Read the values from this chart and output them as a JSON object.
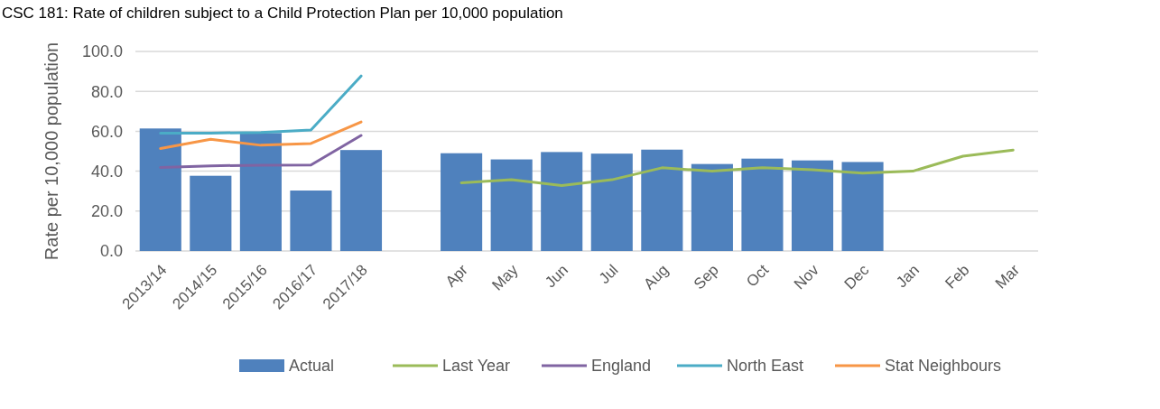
{
  "chart_data": {
    "type": "bar",
    "title": "CSC 181: Rate of children subject to a Child Protection Plan per 10,000 population",
    "ylabel": "Rate per 10,000 population",
    "categories": [
      "2013/14",
      "2014/15",
      "2015/16",
      "2016/17",
      "2017/18",
      null,
      "Apr",
      "May",
      "Jun",
      "Jul",
      "Aug",
      "Sep",
      "Oct",
      "Nov",
      "Dec",
      "Jan",
      "Feb",
      "Mar"
    ],
    "series": [
      {
        "name": "Actual",
        "color": "#4f81bd",
        "values": [
          61.4,
          37.7,
          59.1,
          30.3,
          50.6,
          null,
          49.0,
          45.9,
          49.6,
          48.8,
          50.8,
          43.6,
          46.3,
          45.4,
          44.6,
          null,
          null,
          null
        ]
      },
      {
        "name": "Last Year",
        "type": "line",
        "color": "#9bbb59",
        "values": [
          null,
          null,
          null,
          null,
          null,
          null,
          34.2,
          35.7,
          32.8,
          35.7,
          41.7,
          40.0,
          41.7,
          40.7,
          39.0,
          40.0,
          47.5,
          50.6
        ]
      },
      {
        "name": "England",
        "type": "line",
        "color": "#8064a2",
        "values": [
          41.9,
          42.7,
          43.0,
          43.1,
          57.9,
          null,
          null,
          null,
          null,
          null,
          null,
          null,
          null,
          null,
          null,
          null,
          null,
          null
        ]
      },
      {
        "name": "North East",
        "type": "line",
        "color": "#4bacc6",
        "values": [
          59.1,
          59.1,
          59.4,
          60.6,
          87.7,
          null,
          null,
          null,
          null,
          null,
          null,
          null,
          null,
          null,
          null,
          null,
          null,
          null
        ]
      },
      {
        "name": "Stat Neighbours",
        "type": "line",
        "color": "#f79646",
        "values": [
          51.4,
          56.0,
          53.0,
          53.9,
          64.7,
          null,
          null,
          null,
          null,
          null,
          null,
          null,
          null,
          null,
          null,
          null,
          null,
          null
        ]
      }
    ],
    "ylim": [
      0,
      100
    ],
    "yticks": [
      {
        "value": 0,
        "label": "0.0"
      },
      {
        "value": 20,
        "label": "20.0"
      },
      {
        "value": 40,
        "label": "40.0"
      },
      {
        "value": 60,
        "label": "60.0"
      },
      {
        "value": 80,
        "label": "80.0"
      },
      {
        "value": 100,
        "label": "100.0"
      }
    ],
    "grid": "y",
    "legend": "bottom"
  }
}
